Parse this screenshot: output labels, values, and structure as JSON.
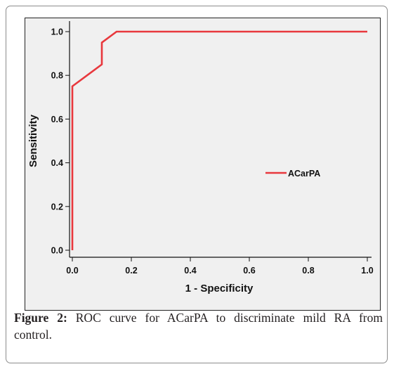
{
  "chart_data": {
    "type": "line",
    "title": "",
    "xlabel": "1 - Specificity",
    "ylabel": "Sensitivity",
    "xlim": [
      0,
      1
    ],
    "ylim": [
      0,
      1
    ],
    "x_ticks": [
      "0.0",
      "0.2",
      "0.4",
      "0.6",
      "0.8",
      "1.0"
    ],
    "y_ticks": [
      "0.0",
      "0.2",
      "0.4",
      "0.6",
      "0.8",
      "1.0"
    ],
    "grid": false,
    "legend_position": "right-middle",
    "series": [
      {
        "name": "ACarPA",
        "color": "#e8383d",
        "x": [
          0.0,
          0.0,
          0.1,
          0.1,
          0.15,
          1.0
        ],
        "y": [
          0.0,
          0.75,
          0.85,
          0.95,
          1.0,
          1.0
        ]
      }
    ]
  },
  "caption": {
    "label": "Figure 2:",
    "text": " ROC curve for ACarPA to discriminate mild RA from control."
  }
}
